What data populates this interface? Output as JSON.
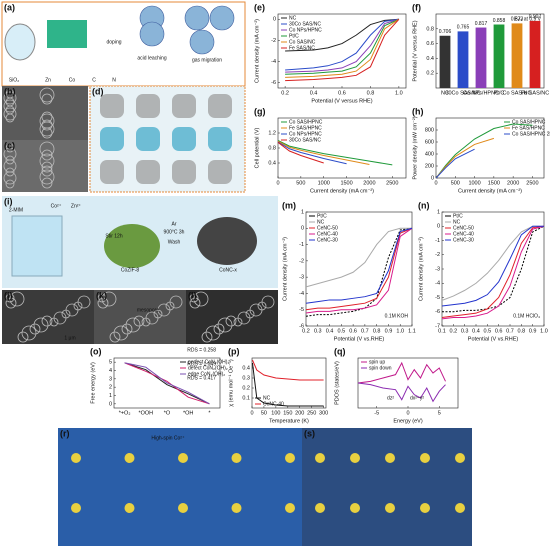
{
  "figure": {
    "panels": [
      {
        "label": "(a)",
        "texts": [
          "doping",
          "acid leaching",
          "gas migration",
          "SiO₂",
          "Zn",
          "Co",
          "C",
          "N"
        ]
      },
      {
        "label": "(b)",
        "texts": []
      },
      {
        "label": "(c)",
        "texts": []
      },
      {
        "label": "(d)",
        "texts": []
      },
      {
        "label": "(e)",
        "chart": {
          "type": "line",
          "xlabel": "Potential (V versus RHE)",
          "ylabel": "Current density (mA cm⁻²)",
          "x": [
            0.2,
            0.4,
            0.5,
            0.6,
            0.7,
            0.8,
            0.9,
            1.0
          ],
          "xlim": [
            0.15,
            1.05
          ],
          "xticks": [
            0.2,
            0.4,
            0.6,
            0.8,
            {
              "value": 1.0,
              "label": "1.0"
            }
          ],
          "ylim": [
            -6.5,
            0.5
          ],
          "yticks": [
            -6,
            -4,
            -2,
            0
          ],
          "legend": "upper left",
          "series": [
            {
              "name": "NC",
              "color": "#222222",
              "values": [
                -3.0,
                -2.9,
                -2.7,
                -2.3,
                -1.5,
                -0.5,
                -0.1,
                0
              ]
            },
            {
              "name": "30Co SAS/NC",
              "color": "#2b4cc9",
              "values": [
                -4.8,
                -4.6,
                -4.4,
                -4.0,
                -3.2,
                -1.5,
                -0.2,
                0
              ]
            },
            {
              "name": "Co NPs/HPNC",
              "color": "#8a3fb8",
              "values": [
                -5.0,
                -4.9,
                -4.8,
                -4.6,
                -4.0,
                -2.5,
                -0.4,
                0
              ]
            },
            {
              "name": "Pt/C",
              "color": "#1f9a3a",
              "values": [
                -5.2,
                -5.1,
                -5.0,
                -4.9,
                -4.5,
                -3.2,
                -0.6,
                0
              ]
            },
            {
              "name": "Co SAS/NC",
              "color": "#e08a1a",
              "values": [
                -5.5,
                -5.4,
                -5.3,
                -5.2,
                -4.9,
                -3.8,
                -0.9,
                0
              ]
            },
            {
              "name": "Fe SAS/NC",
              "color": "#d62020",
              "values": [
                -5.8,
                -5.7,
                -5.6,
                -5.5,
                -5.3,
                -4.5,
                -1.5,
                0
              ]
            }
          ]
        }
      },
      {
        "label": "(f)",
        "chart": {
          "type": "bar",
          "ylabel": "Potential (V versus RHE)",
          "categories": [
            "NC",
            "30Co SAS/NC",
            "Co NPs/HPNC",
            "Pt/C",
            "Co SAS/NC",
            "Fe SAS/NC"
          ],
          "values": [
            0.706,
            0.765,
            0.817,
            0.858,
            0.873,
            0.907
          ],
          "colors": [
            "#333333",
            "#2b4cc9",
            "#8a3fb8",
            "#1f9a3a",
            "#e08a1a",
            "#d62020"
          ],
          "ylim": [
            0,
            1
          ],
          "yticks": [
            0.2,
            0.4,
            0.6,
            0.8
          ],
          "series_name": "E₁/₂ at 0.9 V"
        }
      },
      {
        "label": "(g)",
        "chart": {
          "type": "line",
          "xlabel": "Current density (mA cm⁻²)",
          "ylabel": "Cell potential (V)",
          "x": [
            0,
            250,
            500,
            1000,
            1500,
            2000,
            2500
          ],
          "xlim": [
            0,
            2800
          ],
          "xticks": [
            0,
            500,
            1000,
            1500,
            2000,
            2500
          ],
          "ylim": [
            0,
            1.6
          ],
          "yticks": [
            0.4,
            0.8,
            1.2
          ],
          "legend": "upper left",
          "series": [
            {
              "name": "Co SAS/HPNC",
              "color": "#1f9a3a",
              "values": [
                1.0,
                0.85,
                0.78,
                0.65,
                0.55,
                0.45,
                0.35
              ]
            },
            {
              "name": "Fe SAS/HPNC",
              "color": "#e08a1a",
              "values": [
                0.98,
                0.82,
                0.74,
                0.6,
                0.48,
                0.36,
                null
              ]
            },
            {
              "name": "Co NPs/HPNC",
              "color": "#2b4cc9",
              "values": [
                0.96,
                0.78,
                0.68,
                0.52,
                0.38,
                null,
                null
              ]
            },
            {
              "name": "30Co SAS/NC",
              "color": "#d62020",
              "values": [
                0.95,
                0.72,
                0.6,
                0.4,
                null,
                null,
                null
              ]
            }
          ]
        }
      },
      {
        "label": "(h)",
        "chart": {
          "type": "line",
          "xlabel": "Current density (mA cm⁻²)",
          "ylabel": "Power density (mW cm⁻²)",
          "x": [
            0,
            250,
            500,
            1000,
            1500,
            2000,
            2500
          ],
          "xlim": [
            0,
            2800
          ],
          "xticks": [
            0,
            500,
            1000,
            1500,
            2000,
            2500
          ],
          "ylim": [
            0,
            1000
          ],
          "yticks": [
            0,
            200,
            400,
            600,
            800
          ],
          "legend": "upper right",
          "series": [
            {
              "name": "Co SAS/HPNC",
              "color": "#1f9a3a",
              "values": [
                0,
                210,
                390,
                650,
                825,
                900,
                880
              ]
            },
            {
              "name": "Fe SAS/HPNC",
              "color": "#e08a1a",
              "values": [
                0,
                190,
                360,
                560,
                660,
                null,
                null
              ]
            },
            {
              "name": "Co SAS/HPNC 2bar",
              "color": "#2b4cc9",
              "values": [
                0,
                170,
                320,
                480,
                null,
                null,
                null
              ]
            }
          ]
        }
      },
      {
        "label": "(i)",
        "texts": [
          "2-MIM",
          "Co²⁺",
          "Zn²⁺",
          "Stir 12h",
          "CoZIF-8",
          "Ar",
          "900°C 3h",
          "Wash",
          "CoNC-x"
        ]
      },
      {
        "label": "(j)",
        "texts": [
          "1 μm"
        ]
      },
      {
        "label": "(k)",
        "texts": [
          "mesopore"
        ]
      },
      {
        "label": "(l)",
        "texts": []
      },
      {
        "label": "(m)",
        "chart": {
          "type": "line",
          "xlabel": "Potential (V vs.RHE)",
          "ylabel": "Current density (mA cm⁻²)",
          "x": [
            0.2,
            0.3,
            0.4,
            0.5,
            0.6,
            0.7,
            0.8,
            0.9,
            1.0,
            1.1
          ],
          "xlim": [
            0.2,
            1.1
          ],
          "xticks": [
            0.2,
            0.3,
            0.4,
            0.5,
            0.6,
            0.7,
            0.8,
            0.9,
            {
              "value": 1.0,
              "label": "1.0"
            },
            1.1
          ],
          "ylim": [
            -6,
            1
          ],
          "yticks": [
            -6,
            -5,
            -4,
            -3,
            -2,
            -1,
            0,
            1
          ],
          "legend": "upper left",
          "annotations": [
            "0.1M KOH"
          ],
          "series": [
            {
              "name": "Pt/C",
              "color": "#000000",
              "dash": true,
              "values": [
                -5.4,
                -5.3,
                -5.3,
                -5.2,
                -5.1,
                -4.9,
                -4.3,
                -1.8,
                -0.1,
                0
              ]
            },
            {
              "name": "NC",
              "color": "#aaaaaa",
              "values": [
                -3.6,
                -3.4,
                -3.2,
                -3.0,
                -2.7,
                -2.1,
                -1.0,
                -0.2,
                0,
                0
              ]
            },
            {
              "name": "CeNC-50",
              "color": "#e0202a",
              "values": [
                -5.0,
                -4.9,
                -4.9,
                -4.8,
                -4.7,
                -4.6,
                -4.3,
                -3.0,
                -0.3,
                0
              ]
            },
            {
              "name": "CeNC-40",
              "color": "#d81b8c",
              "values": [
                -5.2,
                -5.1,
                -5.1,
                -5.0,
                -5.0,
                -4.9,
                -4.7,
                -3.8,
                -0.5,
                0
              ]
            },
            {
              "name": "CeNC-30",
              "color": "#2233cc",
              "values": [
                -4.6,
                -4.5,
                -4.4,
                -4.4,
                -4.3,
                -4.2,
                -4.0,
                -2.6,
                -0.2,
                0
              ]
            }
          ]
        }
      },
      {
        "label": "(n)",
        "chart": {
          "type": "line",
          "xlabel": "Potential (V vs.RHE)",
          "ylabel": "Current density (mA cm⁻²)",
          "x": [
            0.1,
            0.2,
            0.3,
            0.4,
            0.5,
            0.6,
            0.7,
            0.8,
            0.9,
            1.0
          ],
          "xlim": [
            0.1,
            1.0
          ],
          "xticks": [
            0.1,
            0.2,
            0.3,
            0.4,
            0.5,
            0.6,
            0.7,
            0.8,
            0.9,
            {
              "value": 1.0,
              "label": "1.0"
            }
          ],
          "ylim": [
            -7,
            1
          ],
          "yticks": [
            -7,
            -6,
            -5,
            -4,
            -3,
            -2,
            -1,
            0,
            1
          ],
          "legend": "upper left",
          "annotations": [
            "0.1M HClO₄"
          ],
          "series": [
            {
              "name": "Pt/C",
              "color": "#000000",
              "dash": true,
              "values": [
                -6.0,
                -6.0,
                -5.9,
                -5.9,
                -5.8,
                -5.6,
                -5.0,
                -3.0,
                -0.4,
                0
              ]
            },
            {
              "name": "NC",
              "color": "#aaaaaa",
              "values": [
                -5.2,
                -4.9,
                -4.5,
                -4.0,
                -3.3,
                -2.4,
                -1.3,
                -0.4,
                0,
                0
              ]
            },
            {
              "name": "CeNC-50",
              "color": "#e0202a",
              "values": [
                -6.4,
                -6.3,
                -6.2,
                -6.1,
                -5.8,
                -5.0,
                -3.4,
                -1.2,
                -0.1,
                0
              ]
            },
            {
              "name": "CeNC-40",
              "color": "#d81b8c",
              "values": [
                -6.5,
                -6.4,
                -6.4,
                -6.3,
                -6.1,
                -5.6,
                -4.2,
                -1.8,
                -0.2,
                0
              ]
            },
            {
              "name": "CeNC-30",
              "color": "#2233cc",
              "values": [
                -5.6,
                -5.5,
                -5.4,
                -5.2,
                -4.8,
                -3.9,
                -2.3,
                -0.6,
                0,
                0
              ]
            }
          ]
        }
      },
      {
        "label": "(o)",
        "chart": {
          "type": "line",
          "ylabel": "Free energy (eV)",
          "categories": [
            "*+O₂",
            "*OOH",
            "*O",
            "*OH",
            "*"
          ],
          "ylim": [
            -0.5,
            5.5
          ],
          "yticks": [
            0,
            1,
            2,
            3,
            4,
            5
          ],
          "legend": "upper right",
          "annotations": [
            "RDS = 0.417",
            "RDS = 1.049",
            "RDS = 0.258"
          ],
          "series": [
            {
              "name": "perfect CoN₂(OH)₂",
              "color": "#222222",
              "values": [
                4.92,
                4.1,
                2.3,
                1.2,
                0
              ]
            },
            {
              "name": "defect CoN₂(OH)₂",
              "color": "#d0206a",
              "values": [
                4.92,
                3.9,
                2.7,
                0.8,
                0
              ]
            },
            {
              "name": "edge CoN₂(OH)₂",
              "color": "#7a4fb0",
              "values": [
                4.92,
                4.4,
                2.5,
                1.4,
                0
              ]
            }
          ]
        }
      },
      {
        "label": "(p)",
        "chart": {
          "type": "line",
          "xlabel": "Temperature (K)",
          "ylabel": "χ (emu mol⁻¹ Oe⁻¹)",
          "x": [
            2,
            20,
            50,
            100,
            150,
            200,
            250,
            300
          ],
          "xlim": [
            0,
            310
          ],
          "xticks": [
            0,
            50,
            100,
            150,
            200,
            250,
            300
          ],
          "ylim": [
            0,
            0.5
          ],
          "yticks": [
            0.1,
            0.2,
            0.3,
            0.4
          ],
          "legend": "lower left",
          "series": [
            {
              "name": "NC",
              "color": "#111111",
              "values": [
                0.45,
                0.1,
                0.05,
                0.03,
                0.02,
                0.02,
                0.02,
                0.02
              ]
            },
            {
              "name": "CeNC-40",
              "color": "#e0202a",
              "values": [
                0.48,
                0.38,
                0.33,
                0.3,
                0.29,
                0.28,
                0.28,
                0.28
              ]
            }
          ]
        }
      },
      {
        "label": "(q)",
        "chart": {
          "type": "line",
          "xlabel": "Energy (eV)",
          "ylabel": "PDOS (states/eV)",
          "x": [
            -8,
            -6,
            -4,
            -2,
            -1,
            0,
            1,
            2,
            3,
            4,
            5,
            6
          ],
          "xlim": [
            -8,
            8
          ],
          "xticks": [
            -5,
            0,
            5
          ],
          "ylim": [
            -1.5,
            1.5
          ],
          "legend": "upper left",
          "annotations": [
            "dz²",
            "dx²−y²"
          ],
          "series": [
            {
              "name": "spin up",
              "color": "#c0188a",
              "values": [
                0,
                0.1,
                0.3,
                0.5,
                1.2,
                0.2,
                0.8,
                0.3,
                1.1,
                0.6,
                0.9,
                0.1
              ]
            },
            {
              "name": "spin down",
              "color": "#8a2ab0",
              "values": [
                0,
                -0.1,
                -0.3,
                -0.4,
                -1.0,
                -0.2,
                -0.7,
                -0.9,
                -0.3,
                -1.1,
                -0.5,
                -0.1
              ]
            }
          ]
        }
      },
      {
        "label": "(r)",
        "texts": [
          "High-spin Co²⁺"
        ]
      },
      {
        "label": "(s)",
        "texts": []
      }
    ]
  }
}
